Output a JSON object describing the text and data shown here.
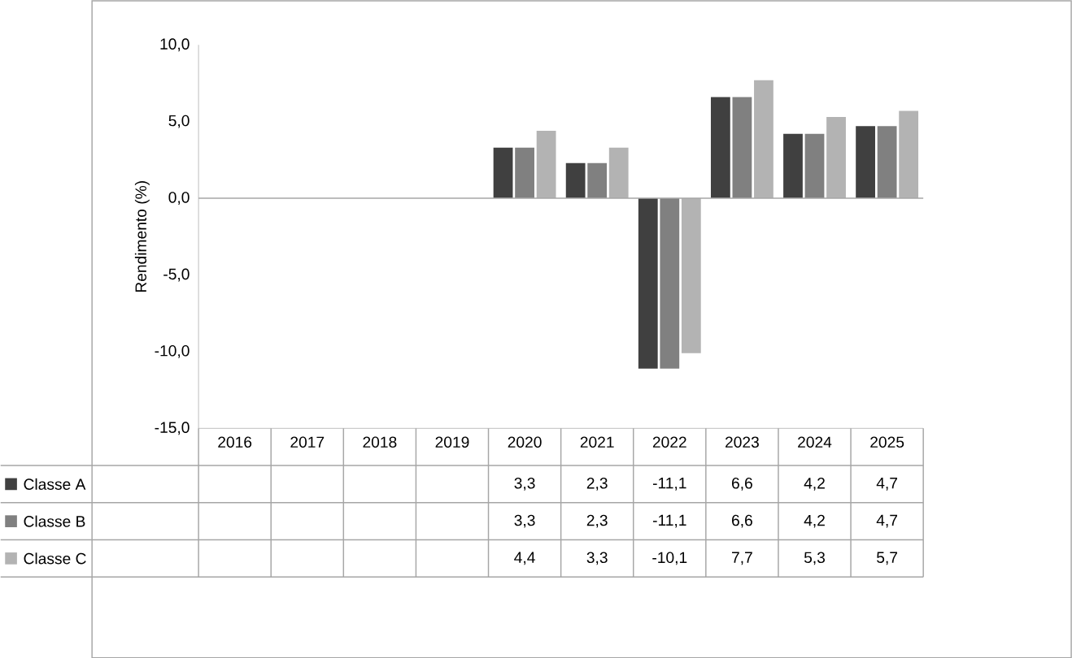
{
  "chart_data": {
    "type": "bar",
    "ylabel": "Rendimento (%)",
    "categories": [
      "2016",
      "2017",
      "2018",
      "2019",
      "2020",
      "2021",
      "2022",
      "2023",
      "2024",
      "2025"
    ],
    "series": [
      {
        "name": "Classe A",
        "color": "#404040",
        "values": [
          null,
          null,
          null,
          null,
          3.3,
          2.3,
          -11.1,
          6.6,
          4.2,
          4.7
        ],
        "value_labels": [
          null,
          null,
          null,
          null,
          "3,3",
          "2,3",
          "-11,1",
          "6,6",
          "4,2",
          "4,7"
        ]
      },
      {
        "name": "Classe B",
        "color": "#808080",
        "values": [
          null,
          null,
          null,
          null,
          3.3,
          2.3,
          -11.1,
          6.6,
          4.2,
          4.7
        ],
        "value_labels": [
          null,
          null,
          null,
          null,
          "3,3",
          "2,3",
          "-11,1",
          "6,6",
          "4,2",
          "4,7"
        ]
      },
      {
        "name": "Classe C",
        "color": "#b3b3b3",
        "values": [
          null,
          null,
          null,
          null,
          4.4,
          3.3,
          -10.1,
          7.7,
          5.3,
          5.7
        ],
        "value_labels": [
          null,
          null,
          null,
          null,
          "4,4",
          "3,3",
          "-10,1",
          "7,7",
          "5,3",
          "5,7"
        ]
      }
    ],
    "ylim": [
      -15,
      10
    ],
    "yticks": [
      {
        "value": -15,
        "label": "-15,0"
      },
      {
        "value": -10,
        "label": "-10,0"
      },
      {
        "value": -5,
        "label": "-5,0"
      },
      {
        "value": 0,
        "label": "0,0"
      },
      {
        "value": 5,
        "label": "5,0"
      },
      {
        "value": 10,
        "label": "10,0"
      }
    ],
    "legend": "bottom"
  }
}
